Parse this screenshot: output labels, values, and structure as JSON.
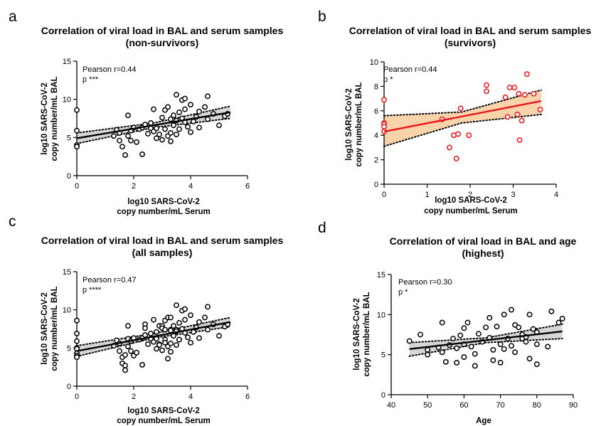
{
  "colors": {
    "black": "#000000",
    "red": "#e8151b",
    "ci_gray": "#d6d6d6",
    "ci_orange": "#f9d3a9"
  },
  "chart_data": [
    {
      "letter": "a",
      "type": "scatter",
      "title_line1": "Correlation of viral load in BAL and serum samples",
      "title_line2": "(non-survivors)",
      "xlabel_line1": "log10 SARS-CoV-2",
      "xlabel_line2": "copy number/mL Serum",
      "ylabel_line1": "log10 SARS-CoV-2",
      "ylabel_line2": "copy number/mL BAL",
      "stat_r": "Pearson r=0.44",
      "stat_p": "p ***",
      "xlim": [
        0,
        6
      ],
      "ylim": [
        0,
        15
      ],
      "xticks": [
        0,
        2,
        4,
        6
      ],
      "yticks": [
        0,
        5,
        10,
        15
      ],
      "marker": "open-circle",
      "color": "#000000",
      "ci_color": "#d6d6d6",
      "fit": {
        "x": [
          0,
          5.4
        ],
        "y": [
          4.9,
          8.3
        ]
      },
      "ci": {
        "x": [
          0,
          2.7,
          5.4
        ],
        "upper": [
          5.6,
          6.9,
          9.1
        ],
        "lower": [
          4.2,
          6.3,
          7.5
        ]
      },
      "points": [
        [
          0,
          8.6
        ],
        [
          0,
          5.9
        ],
        [
          0,
          4.0
        ],
        [
          0,
          3.8
        ],
        [
          1.3,
          5.2
        ],
        [
          1.4,
          6.0
        ],
        [
          1.5,
          5.6
        ],
        [
          1.5,
          4.6
        ],
        [
          1.6,
          3.8
        ],
        [
          1.7,
          2.7
        ],
        [
          1.8,
          7.9
        ],
        [
          1.8,
          5.2
        ],
        [
          1.9,
          5.9
        ],
        [
          1.9,
          4.6
        ],
        [
          2.0,
          6.3
        ],
        [
          2.1,
          4.4
        ],
        [
          2.2,
          6.1
        ],
        [
          2.3,
          2.8
        ],
        [
          2.3,
          6.3
        ],
        [
          2.4,
          6.7
        ],
        [
          2.5,
          5.5
        ],
        [
          2.6,
          6.9
        ],
        [
          2.6,
          6.2
        ],
        [
          2.7,
          8.7
        ],
        [
          2.7,
          5.8
        ],
        [
          2.8,
          6.2
        ],
        [
          2.8,
          4.9
        ],
        [
          2.9,
          5.4
        ],
        [
          3.0,
          7.6
        ],
        [
          3.0,
          4.7
        ],
        [
          3.1,
          8.6
        ],
        [
          3.1,
          6.1
        ],
        [
          3.2,
          9.0
        ],
        [
          3.2,
          5.2
        ],
        [
          3.3,
          7.4
        ],
        [
          3.3,
          5.6
        ],
        [
          3.3,
          4.5
        ],
        [
          3.4,
          6.6
        ],
        [
          3.4,
          7.9
        ],
        [
          3.5,
          10.6
        ],
        [
          3.5,
          7.2
        ],
        [
          3.5,
          5.4
        ],
        [
          3.6,
          8.3
        ],
        [
          3.6,
          6.1
        ],
        [
          3.7,
          9.9
        ],
        [
          3.7,
          7.5
        ],
        [
          3.8,
          10.1
        ],
        [
          3.8,
          8.7
        ],
        [
          3.8,
          7.0
        ],
        [
          3.9,
          6.4
        ],
        [
          4.0,
          9.3
        ],
        [
          4.0,
          5.7
        ],
        [
          4.1,
          7.1
        ],
        [
          4.2,
          7.7
        ],
        [
          4.3,
          8.4
        ],
        [
          4.3,
          6.3
        ],
        [
          4.5,
          9.0
        ],
        [
          4.6,
          10.4
        ],
        [
          4.6,
          7.4
        ],
        [
          4.8,
          8.1
        ],
        [
          5.0,
          6.6
        ],
        [
          5.2,
          7.8
        ],
        [
          5.3,
          8.1
        ]
      ]
    },
    {
      "letter": "b",
      "type": "scatter",
      "title_line1": "Correlation of viral load in BAL and serum samples",
      "title_line2": "(survivors)",
      "xlabel_line1": "log10 SARS-CoV-2",
      "xlabel_line2": "copy number/mL Serum",
      "ylabel_line1": "log10 SARS-CoV-2",
      "ylabel_line2": "copy number/mL BAL",
      "stat_r": "Pearson r=0.44",
      "stat_p": "p *",
      "xlim": [
        0,
        4
      ],
      "ylim": [
        0,
        10
      ],
      "xticks": [
        0,
        1,
        2,
        3,
        4
      ],
      "yticks": [
        0,
        2,
        4,
        6,
        8,
        10
      ],
      "marker": "open-circle",
      "color": "#e8151b",
      "ci_color": "#f9d3a9",
      "fit": {
        "x": [
          0,
          3.65
        ],
        "y": [
          4.3,
          6.8
        ]
      },
      "ci": {
        "x": [
          0,
          1.8,
          3.65
        ],
        "upper": [
          5.6,
          5.9,
          7.7
        ],
        "lower": [
          3.1,
          5.0,
          5.7
        ]
      },
      "points": [
        [
          0,
          6.9
        ],
        [
          0,
          5.0
        ],
        [
          0,
          4.9
        ],
        [
          0,
          4.7
        ],
        [
          0,
          4.3
        ],
        [
          1.35,
          5.3
        ],
        [
          1.52,
          3.0
        ],
        [
          1.62,
          4.0
        ],
        [
          1.68,
          2.1
        ],
        [
          1.72,
          4.1
        ],
        [
          1.78,
          6.2
        ],
        [
          1.97,
          4.0
        ],
        [
          2.38,
          8.1
        ],
        [
          2.38,
          7.6
        ],
        [
          2.82,
          7.1
        ],
        [
          2.87,
          5.5
        ],
        [
          2.92,
          7.9
        ],
        [
          3.03,
          7.9
        ],
        [
          3.1,
          5.7
        ],
        [
          3.13,
          7.4
        ],
        [
          3.15,
          3.6
        ],
        [
          3.2,
          5.2
        ],
        [
          3.27,
          7.3
        ],
        [
          3.32,
          9.0
        ],
        [
          3.48,
          7.4
        ],
        [
          3.63,
          6.1
        ]
      ]
    },
    {
      "letter": "c",
      "type": "scatter",
      "title_line1": "Correlation of viral load in BAL and serum samples",
      "title_line2": "(all samples)",
      "xlabel_line1": "log10 SARS-CoV-2",
      "xlabel_line2": "copy number/mL Serum",
      "ylabel_line1": "log10 SARS-CoV-2",
      "ylabel_line2": "copy number/mL BAL",
      "stat_r": "Pearson r=0.47",
      "stat_p": "p ****",
      "xlim": [
        0,
        6
      ],
      "ylim": [
        0,
        15
      ],
      "xticks": [
        0,
        2,
        4,
        6
      ],
      "yticks": [
        0,
        5,
        10,
        15
      ],
      "marker": "open-circle",
      "color": "#000000",
      "ci_color": "#d6d6d6",
      "fit": {
        "x": [
          0,
          5.4
        ],
        "y": [
          4.6,
          8.4
        ]
      },
      "ci": {
        "x": [
          0,
          2.7,
          5.4
        ],
        "upper": [
          5.3,
          6.9,
          9.0
        ],
        "lower": [
          3.9,
          6.3,
          7.8
        ]
      },
      "points": [
        [
          0,
          8.6
        ],
        [
          0,
          6.9
        ],
        [
          0,
          5.9
        ],
        [
          0,
          5.0
        ],
        [
          0,
          4.9
        ],
        [
          0,
          4.3
        ],
        [
          0,
          4.0
        ],
        [
          0,
          3.8
        ],
        [
          1.3,
          5.3
        ],
        [
          1.4,
          6.0
        ],
        [
          1.5,
          5.6
        ],
        [
          1.5,
          4.6
        ],
        [
          1.6,
          3.8
        ],
        [
          1.6,
          3.0
        ],
        [
          1.7,
          2.7
        ],
        [
          1.7,
          4.1
        ],
        [
          1.7,
          2.1
        ],
        [
          1.8,
          7.9
        ],
        [
          1.8,
          6.2
        ],
        [
          1.8,
          5.2
        ],
        [
          1.9,
          5.9
        ],
        [
          1.9,
          4.6
        ],
        [
          2.0,
          4.0
        ],
        [
          2.0,
          6.3
        ],
        [
          2.1,
          4.4
        ],
        [
          2.2,
          6.1
        ],
        [
          2.3,
          2.8
        ],
        [
          2.3,
          6.3
        ],
        [
          2.4,
          8.1
        ],
        [
          2.4,
          7.6
        ],
        [
          2.4,
          6.7
        ],
        [
          2.5,
          5.5
        ],
        [
          2.6,
          6.9
        ],
        [
          2.6,
          6.2
        ],
        [
          2.7,
          8.7
        ],
        [
          2.7,
          5.8
        ],
        [
          2.8,
          7.1
        ],
        [
          2.8,
          6.2
        ],
        [
          2.8,
          4.9
        ],
        [
          2.9,
          5.5
        ],
        [
          2.9,
          5.4
        ],
        [
          2.9,
          7.9
        ],
        [
          3.0,
          7.9
        ],
        [
          3.0,
          7.6
        ],
        [
          3.0,
          4.7
        ],
        [
          3.1,
          8.6
        ],
        [
          3.1,
          6.1
        ],
        [
          3.1,
          5.7
        ],
        [
          3.1,
          7.4
        ],
        [
          3.2,
          9.0
        ],
        [
          3.2,
          5.2
        ],
        [
          3.2,
          3.6
        ],
        [
          3.3,
          7.4
        ],
        [
          3.3,
          7.3
        ],
        [
          3.3,
          5.6
        ],
        [
          3.3,
          4.5
        ],
        [
          3.3,
          9.0
        ],
        [
          3.4,
          6.6
        ],
        [
          3.4,
          7.9
        ],
        [
          3.5,
          10.6
        ],
        [
          3.5,
          7.4
        ],
        [
          3.5,
          7.2
        ],
        [
          3.5,
          5.4
        ],
        [
          3.6,
          8.3
        ],
        [
          3.6,
          6.1
        ],
        [
          3.6,
          6.1
        ],
        [
          3.7,
          9.9
        ],
        [
          3.7,
          7.5
        ],
        [
          3.8,
          10.1
        ],
        [
          3.8,
          8.7
        ],
        [
          3.8,
          7.0
        ],
        [
          3.9,
          6.4
        ],
        [
          4.0,
          9.3
        ],
        [
          4.0,
          5.7
        ],
        [
          4.1,
          7.1
        ],
        [
          4.2,
          7.7
        ],
        [
          4.3,
          8.4
        ],
        [
          4.3,
          6.3
        ],
        [
          4.5,
          9.0
        ],
        [
          4.6,
          10.4
        ],
        [
          4.6,
          7.4
        ],
        [
          4.8,
          8.1
        ],
        [
          5.0,
          6.6
        ],
        [
          5.2,
          7.8
        ],
        [
          5.3,
          8.1
        ]
      ]
    },
    {
      "letter": "d",
      "type": "scatter",
      "title_line1": "Correlation of viral load in BAL and age",
      "title_line2": "(highest)",
      "xlabel_line1": "Age",
      "xlabel_line2": "",
      "ylabel_line1": "log10 SARS-CoV-2",
      "ylabel_line2": "copy number/mL BAL",
      "stat_r": "Pearson r=0.30",
      "stat_p": "p *",
      "xlim": [
        40,
        90
      ],
      "ylim": [
        0,
        15
      ],
      "xticks": [
        40,
        50,
        60,
        70,
        80,
        90
      ],
      "yticks": [
        0,
        5,
        10,
        15
      ],
      "marker": "open-circle",
      "color": "#000000",
      "ci_color": "#d6d6d6",
      "fit": {
        "x": [
          45,
          87
        ],
        "y": [
          5.7,
          7.9
        ]
      },
      "ci": {
        "x": [
          45,
          66,
          87
        ],
        "upper": [
          6.5,
          7.1,
          8.8
        ],
        "lower": [
          4.8,
          6.5,
          7.0
        ]
      },
      "points": [
        [
          45,
          6.7
        ],
        [
          48,
          7.5
        ],
        [
          50,
          5.0
        ],
        [
          50,
          5.6
        ],
        [
          53,
          5.9
        ],
        [
          54,
          9.0
        ],
        [
          54,
          5.3
        ],
        [
          55,
          4.1
        ],
        [
          56,
          6.2
        ],
        [
          57,
          7.0
        ],
        [
          58,
          5.8
        ],
        [
          58,
          4.0
        ],
        [
          59,
          7.4
        ],
        [
          60,
          8.3
        ],
        [
          60,
          6.3
        ],
        [
          60,
          4.7
        ],
        [
          61,
          9.0
        ],
        [
          62,
          6.0
        ],
        [
          63,
          5.1
        ],
        [
          63,
          3.6
        ],
        [
          64,
          7.6
        ],
        [
          65,
          6.6
        ],
        [
          66,
          8.4
        ],
        [
          67,
          9.6
        ],
        [
          67,
          7.1
        ],
        [
          68,
          4.3
        ],
        [
          68,
          5.6
        ],
        [
          69,
          8.5
        ],
        [
          70,
          4.0
        ],
        [
          70,
          6.3
        ],
        [
          71,
          10.0
        ],
        [
          71,
          5.7
        ],
        [
          72,
          7.0
        ],
        [
          73,
          10.6
        ],
        [
          73,
          6.1
        ],
        [
          74,
          5.3
        ],
        [
          74,
          8.7
        ],
        [
          75,
          8.4
        ],
        [
          76,
          7.5
        ],
        [
          76,
          7.0
        ],
        [
          77,
          7.2
        ],
        [
          77,
          6.6
        ],
        [
          78,
          10.0
        ],
        [
          78,
          4.5
        ],
        [
          79,
          8.2
        ],
        [
          80,
          7.8
        ],
        [
          80,
          6.3
        ],
        [
          80,
          3.8
        ],
        [
          83,
          6.0
        ],
        [
          84,
          10.4
        ],
        [
          86,
          9.0
        ],
        [
          87,
          9.5
        ]
      ]
    }
  ]
}
